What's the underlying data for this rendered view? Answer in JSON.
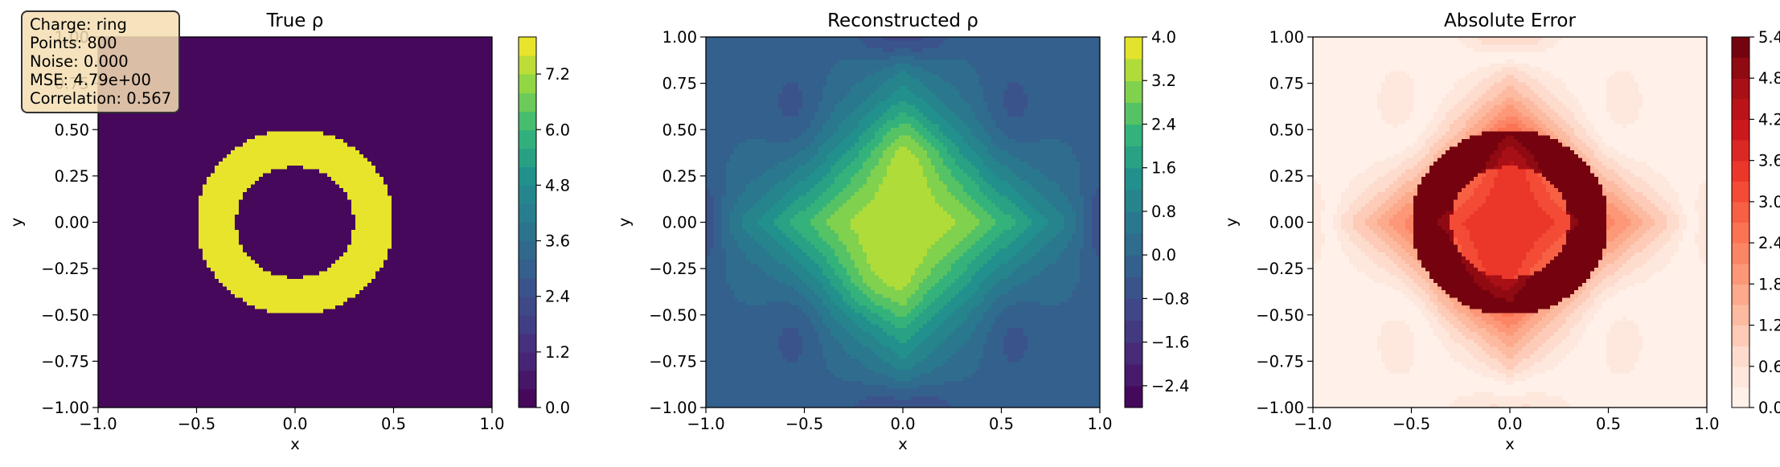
{
  "info_box": {
    "charge": "Charge: ring",
    "points": "Points: 800",
    "noise": "Noise: 0.000",
    "mse": "MSE: 4.79e+00",
    "correlation": "Correlation: 0.567"
  },
  "chart_data": [
    {
      "type": "heatmap",
      "title": "True ρ",
      "xlabel": "x",
      "ylabel": "y",
      "xlim": [
        -1.0,
        1.0
      ],
      "ylim": [
        -1.0,
        1.0
      ],
      "xticks": [
        "−1.0",
        "−0.5",
        "0.0",
        "0.5",
        "1.0"
      ],
      "yticks": [
        "−1.00",
        "−0.75",
        "−0.50",
        "−0.25",
        "0.00",
        "0.25",
        "0.50",
        "0.75",
        "1.00"
      ],
      "colormap": "viridis",
      "color_range": [
        0.0,
        8.0
      ],
      "colorbar_ticks": [
        "0.0",
        "1.2",
        "2.4",
        "3.6",
        "4.8",
        "6.0",
        "7.2"
      ],
      "field": {
        "shape": "ring",
        "inner_radius": 0.3,
        "outer_radius": 0.5,
        "ring_value": 8.0,
        "background_value": 0.0
      }
    },
    {
      "type": "heatmap",
      "title": "Reconstructed ρ",
      "xlabel": "x",
      "ylabel": "y",
      "xlim": [
        -1.0,
        1.0
      ],
      "ylim": [
        -1.0,
        1.0
      ],
      "xticks": [
        "−1.0",
        "−0.5",
        "0.0",
        "0.5",
        "1.0"
      ],
      "yticks": [
        "−1.00",
        "−0.75",
        "−0.50",
        "−0.25",
        "0.00",
        "0.25",
        "0.50",
        "0.75",
        "1.00"
      ],
      "colormap": "viridis",
      "color_range": [
        -2.8,
        4.0
      ],
      "colorbar_ticks": [
        "−2.4",
        "−1.6",
        "−0.8",
        "0.0",
        "0.8",
        "1.6",
        "2.4",
        "3.2",
        "4.0"
      ],
      "field": {
        "shape": "smooth-diamond",
        "peak_value": 4.0,
        "min_value": -2.8
      }
    },
    {
      "type": "heatmap",
      "title": "Absolute Error",
      "xlabel": "x",
      "ylabel": "y",
      "xlim": [
        -1.0,
        1.0
      ],
      "ylim": [
        -1.0,
        1.0
      ],
      "xticks": [
        "−1.0",
        "−0.5",
        "0.0",
        "0.5",
        "1.0"
      ],
      "yticks": [
        "−1.00",
        "−0.75",
        "−0.50",
        "−0.25",
        "0.00",
        "0.25",
        "0.50",
        "0.75",
        "1.00"
      ],
      "colormap": "reds",
      "color_range": [
        0.0,
        5.4
      ],
      "colorbar_ticks": [
        "0.0",
        "0.6",
        "1.2",
        "1.8",
        "2.4",
        "3.0",
        "3.6",
        "4.2",
        "4.8",
        "5.4"
      ],
      "field": {
        "shape": "abs-difference",
        "max_value": 5.4
      }
    }
  ],
  "colors": {
    "axes": "#000000",
    "info_bg": "#f5deb3"
  }
}
